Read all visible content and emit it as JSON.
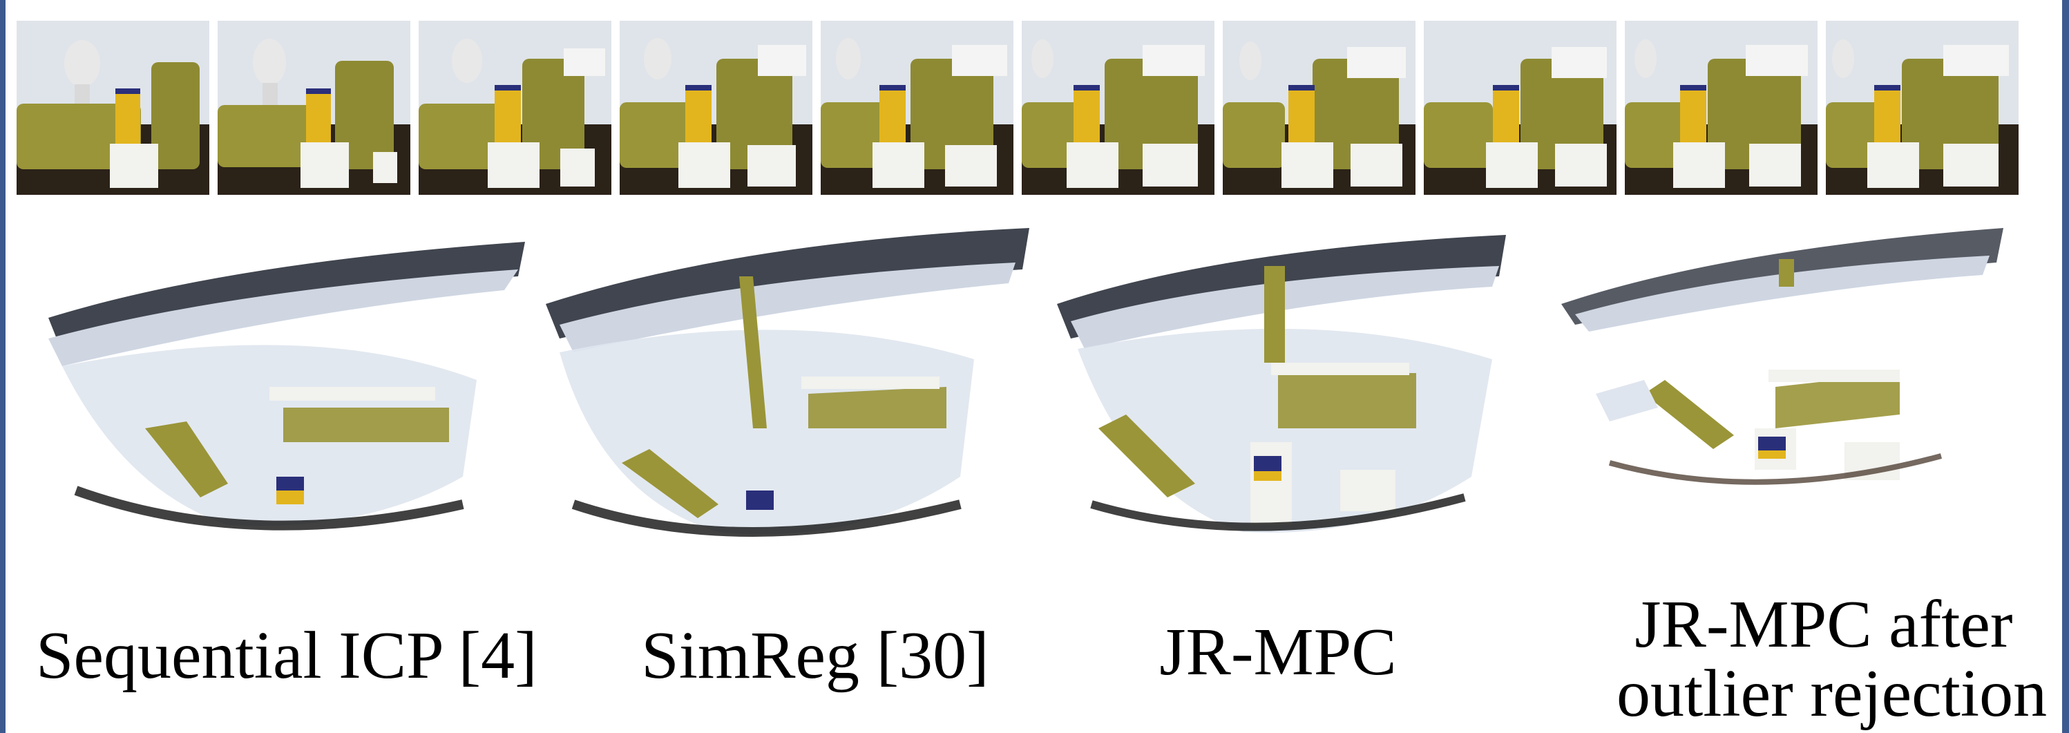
{
  "figure": {
    "frames_icon": "rgb-frame-thumbnail",
    "cloud_icon": "point-cloud-render",
    "frame_count": 10,
    "colors": {
      "frame_border": "#3d5a8f",
      "chair": "#9a9538",
      "wall": "#dde3ec",
      "box": "#f2f2ee",
      "can": "#e2b51e",
      "shadow": "#1a1a1a"
    }
  },
  "captions": {
    "sequential_icp": "Sequential ICP [4]",
    "simreg": "SimReg [30]",
    "jr_mpc": "JR-MPC",
    "jr_mpc_outlier_line1": "JR-MPC after",
    "jr_mpc_outlier_line2": "outlier rejection"
  }
}
